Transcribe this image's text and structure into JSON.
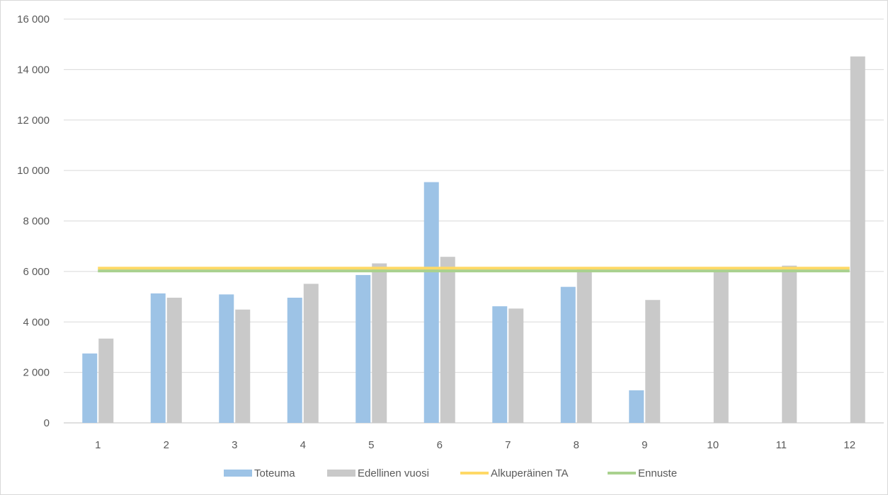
{
  "chart_data": {
    "type": "bar",
    "categories": [
      "1",
      "2",
      "3",
      "4",
      "5",
      "6",
      "7",
      "8",
      "9",
      "10",
      "11",
      "12"
    ],
    "series": [
      {
        "name": "Toteuma",
        "kind": "bar",
        "color": "#9dc3e6",
        "values": [
          2750,
          5130,
          5090,
          4960,
          5860,
          9540,
          4620,
          5390,
          1290,
          null,
          null,
          null
        ]
      },
      {
        "name": "Edellinen vuosi",
        "kind": "bar",
        "color": "#c9c9c9",
        "values": [
          3340,
          4960,
          4490,
          5510,
          6320,
          6580,
          4530,
          6080,
          4870,
          6000,
          6230,
          14520
        ]
      },
      {
        "name": "Alkuperäinen TA",
        "kind": "line",
        "color": "#ffd966",
        "values": [
          6130,
          6130,
          6130,
          6130,
          6130,
          6130,
          6130,
          6130,
          6130,
          6130,
          6130,
          6130
        ]
      },
      {
        "name": "Ennuste",
        "kind": "line",
        "color": "#a9d18e",
        "values": [
          6020,
          6020,
          6020,
          6020,
          6020,
          6020,
          6020,
          6020,
          6020,
          6020,
          6020,
          6020
        ]
      }
    ],
    "ylim": [
      0,
      16000
    ],
    "yticks": [
      "0",
      "2 000",
      "4 000",
      "6 000",
      "8 000",
      "10 000",
      "12 000",
      "14 000",
      "16 000"
    ],
    "grid": true,
    "legend": "bottom",
    "title": "",
    "xlabel": "",
    "ylabel": ""
  }
}
